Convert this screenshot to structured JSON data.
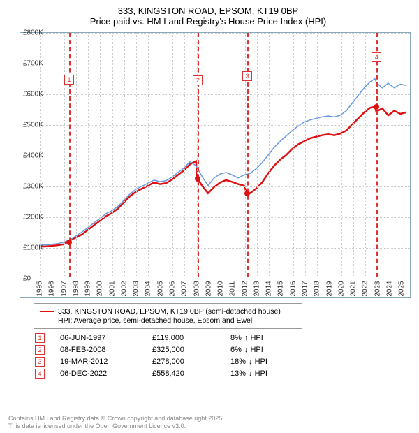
{
  "title": "333, KINGSTON ROAD, EPSOM, KT19 0BP",
  "subtitle": "Price paid vs. HM Land Registry's House Price Index (HPI)",
  "chart": {
    "type": "line",
    "background_color": "#ffffff",
    "grid_color": "#cccccc",
    "axis_color": "#88aabb",
    "y": {
      "min": 0,
      "max": 800000,
      "step": 100000,
      "prefix": "£",
      "suffix": "K",
      "divide": 1000,
      "label_fontsize": 10
    },
    "x": {
      "min": 1995,
      "max": 2025.8,
      "labels": [
        "1995",
        "1996",
        "1997",
        "1998",
        "1999",
        "2000",
        "2001",
        "2002",
        "2003",
        "2004",
        "2005",
        "2006",
        "2007",
        "2008",
        "2009",
        "2010",
        "2011",
        "2012",
        "2013",
        "2014",
        "2015",
        "2016",
        "2017",
        "2018",
        "2019",
        "2020",
        "2021",
        "2022",
        "2023",
        "2024",
        "2025"
      ],
      "label_fontsize": 10
    },
    "series": [
      {
        "id": "price_paid",
        "label": "333, KINGSTON ROAD, EPSOM, KT19 0BP (semi-detached house)",
        "color": "#dd1111",
        "width": 2.5,
        "points": [
          [
            1995.0,
            100000
          ],
          [
            1995.5,
            101000
          ],
          [
            1996.0,
            103000
          ],
          [
            1996.5,
            105000
          ],
          [
            1997.0,
            108000
          ],
          [
            1997.4,
            119000
          ],
          [
            1997.5,
            121000
          ],
          [
            1998.0,
            130000
          ],
          [
            1998.5,
            140000
          ],
          [
            1999.0,
            155000
          ],
          [
            1999.5,
            170000
          ],
          [
            2000.0,
            185000
          ],
          [
            2000.5,
            200000
          ],
          [
            2001.0,
            210000
          ],
          [
            2001.5,
            225000
          ],
          [
            2002.0,
            245000
          ],
          [
            2002.5,
            265000
          ],
          [
            2003.0,
            280000
          ],
          [
            2003.5,
            290000
          ],
          [
            2004.0,
            300000
          ],
          [
            2004.5,
            310000
          ],
          [
            2005.0,
            305000
          ],
          [
            2005.5,
            308000
          ],
          [
            2006.0,
            320000
          ],
          [
            2006.5,
            335000
          ],
          [
            2007.0,
            350000
          ],
          [
            2007.5,
            370000
          ],
          [
            2008.0,
            380000
          ],
          [
            2008.1,
            325000
          ],
          [
            2008.5,
            300000
          ],
          [
            2009.0,
            275000
          ],
          [
            2009.5,
            295000
          ],
          [
            2010.0,
            310000
          ],
          [
            2010.5,
            318000
          ],
          [
            2011.0,
            312000
          ],
          [
            2011.5,
            305000
          ],
          [
            2012.0,
            300000
          ],
          [
            2012.2,
            278000
          ],
          [
            2012.5,
            275000
          ],
          [
            2013.0,
            290000
          ],
          [
            2013.5,
            310000
          ],
          [
            2014.0,
            340000
          ],
          [
            2014.5,
            365000
          ],
          [
            2015.0,
            385000
          ],
          [
            2015.5,
            400000
          ],
          [
            2016.0,
            420000
          ],
          [
            2016.5,
            435000
          ],
          [
            2017.0,
            445000
          ],
          [
            2017.5,
            455000
          ],
          [
            2018.0,
            460000
          ],
          [
            2018.5,
            465000
          ],
          [
            2019.0,
            468000
          ],
          [
            2019.5,
            465000
          ],
          [
            2020.0,
            470000
          ],
          [
            2020.5,
            480000
          ],
          [
            2021.0,
            500000
          ],
          [
            2021.5,
            520000
          ],
          [
            2022.0,
            540000
          ],
          [
            2022.5,
            555000
          ],
          [
            2022.9,
            558420
          ],
          [
            2023.0,
            542000
          ],
          [
            2023.5,
            553000
          ],
          [
            2024.0,
            530000
          ],
          [
            2024.5,
            545000
          ],
          [
            2025.0,
            535000
          ],
          [
            2025.5,
            540000
          ]
        ]
      },
      {
        "id": "hpi",
        "label": "HPI: Average price, semi-detached house, Epsom and Ewell",
        "color": "#6699dd",
        "width": 1.5,
        "points": [
          [
            1995.0,
            105000
          ],
          [
            1995.5,
            106000
          ],
          [
            1996.0,
            108000
          ],
          [
            1996.5,
            110000
          ],
          [
            1997.0,
            115000
          ],
          [
            1997.5,
            122000
          ],
          [
            1998.0,
            135000
          ],
          [
            1998.5,
            148000
          ],
          [
            1999.0,
            162000
          ],
          [
            1999.5,
            178000
          ],
          [
            2000.0,
            192000
          ],
          [
            2000.5,
            208000
          ],
          [
            2001.0,
            218000
          ],
          [
            2001.5,
            232000
          ],
          [
            2002.0,
            252000
          ],
          [
            2002.5,
            272000
          ],
          [
            2003.0,
            288000
          ],
          [
            2003.5,
            298000
          ],
          [
            2004.0,
            308000
          ],
          [
            2004.5,
            318000
          ],
          [
            2005.0,
            313000
          ],
          [
            2005.5,
            316000
          ],
          [
            2006.0,
            328000
          ],
          [
            2006.5,
            343000
          ],
          [
            2007.0,
            358000
          ],
          [
            2007.5,
            378000
          ],
          [
            2008.0,
            365000
          ],
          [
            2008.5,
            330000
          ],
          [
            2009.0,
            300000
          ],
          [
            2009.5,
            325000
          ],
          [
            2010.0,
            338000
          ],
          [
            2010.5,
            343000
          ],
          [
            2011.0,
            335000
          ],
          [
            2011.5,
            325000
          ],
          [
            2012.0,
            335000
          ],
          [
            2012.5,
            340000
          ],
          [
            2013.0,
            355000
          ],
          [
            2013.5,
            375000
          ],
          [
            2014.0,
            400000
          ],
          [
            2014.5,
            425000
          ],
          [
            2015.0,
            445000
          ],
          [
            2015.5,
            462000
          ],
          [
            2016.0,
            480000
          ],
          [
            2016.5,
            495000
          ],
          [
            2017.0,
            508000
          ],
          [
            2017.5,
            515000
          ],
          [
            2018.0,
            520000
          ],
          [
            2018.5,
            525000
          ],
          [
            2019.0,
            528000
          ],
          [
            2019.5,
            525000
          ],
          [
            2020.0,
            530000
          ],
          [
            2020.5,
            545000
          ],
          [
            2021.0,
            570000
          ],
          [
            2021.5,
            595000
          ],
          [
            2022.0,
            620000
          ],
          [
            2022.5,
            640000
          ],
          [
            2022.9,
            650000
          ],
          [
            2023.0,
            638000
          ],
          [
            2023.5,
            620000
          ],
          [
            2024.0,
            635000
          ],
          [
            2024.5,
            620000
          ],
          [
            2025.0,
            632000
          ],
          [
            2025.5,
            628000
          ]
        ]
      }
    ],
    "sales": [
      {
        "idx": "1",
        "year": 1997.43,
        "date": "06-JUN-1997",
        "price": "£119,000",
        "diff": "8%",
        "dir": "up",
        "dir_label": "↑ HPI",
        "value": 119000,
        "marker_y": 648000
      },
      {
        "idx": "2",
        "year": 2008.11,
        "date": "08-FEB-2008",
        "price": "£325,000",
        "diff": "6%",
        "dir": "down",
        "dir_label": "↓ HPI",
        "value": 325000,
        "marker_y": 645000
      },
      {
        "idx": "3",
        "year": 2012.21,
        "date": "19-MAR-2012",
        "price": "£278,000",
        "diff": "18%",
        "dir": "down",
        "dir_label": "↓ HPI",
        "value": 278000,
        "marker_y": 660000
      },
      {
        "idx": "4",
        "year": 2022.93,
        "date": "06-DEC-2022",
        "price": "£558,420",
        "diff": "13%",
        "dir": "down",
        "dir_label": "↓ HPI",
        "value": 558420,
        "marker_y": 720000
      }
    ],
    "sale_marker_border": "#dd3333",
    "sale_point_color": "#dd1111"
  },
  "copyright": {
    "line1": "Contains HM Land Registry data © Crown copyright and database right 2025.",
    "line2": "This data is licensed under the Open Government Licence v3.0."
  }
}
